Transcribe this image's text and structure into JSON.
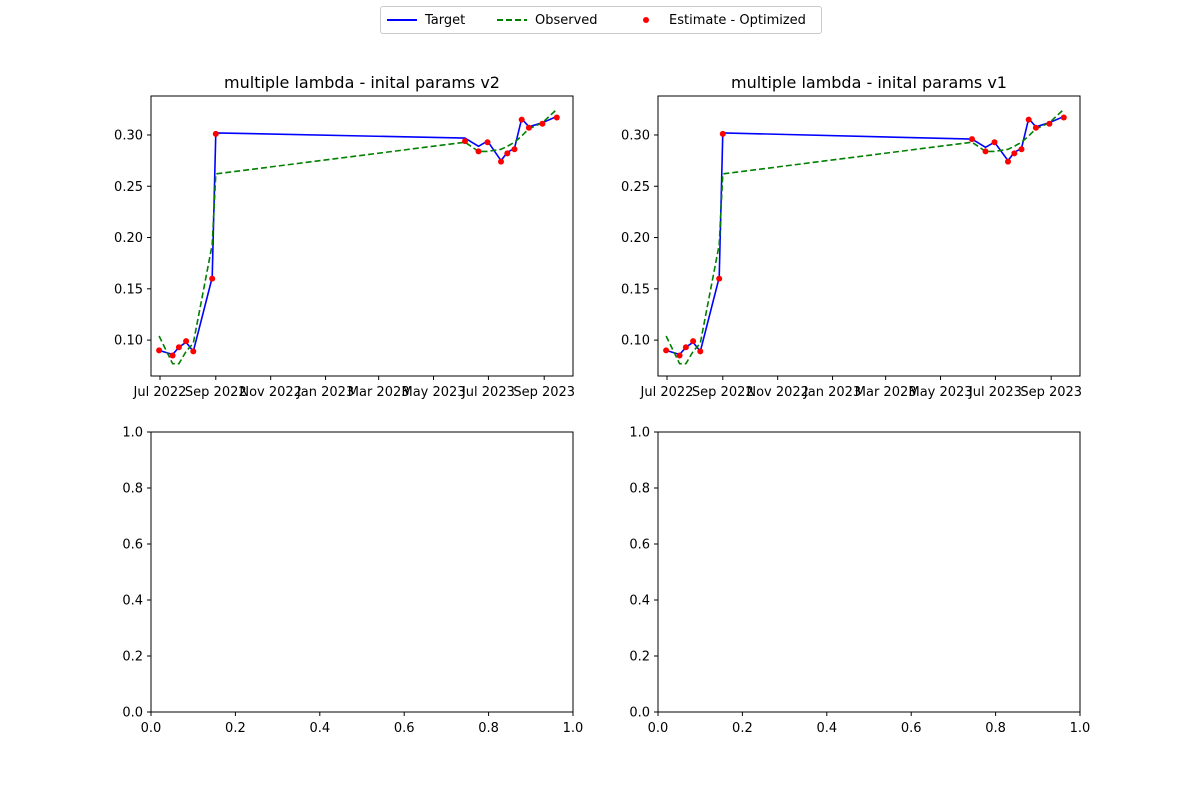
{
  "legend": {
    "target_label": "Target",
    "observed_label": "Observed",
    "estimate_label": "Estimate - Optimized"
  },
  "colors": {
    "target": "#0000ff",
    "observed": "#008000",
    "estimate": "#ff0000"
  },
  "chart_data": [
    {
      "type": "line",
      "title": "multiple lambda - inital params v2",
      "xlabel": "",
      "ylabel": "",
      "x_axis_type": "date",
      "xlim": [
        "2022-06-21",
        "2023-10-03"
      ],
      "ylim": [
        0.065,
        0.338
      ],
      "xticks": [
        "2022-07-01",
        "2022-09-01",
        "2022-11-01",
        "2023-01-01",
        "2023-03-01",
        "2023-05-01",
        "2023-07-01",
        "2023-09-01"
      ],
      "xtick_labels": [
        "Jul 2022",
        "Sep 2022",
        "Nov 2022",
        "Jan 2023",
        "Mar 2023",
        "May 2023",
        "Jul 2023",
        "Sep 2023"
      ],
      "yticks": [
        0.1,
        0.15,
        0.2,
        0.25,
        0.3
      ],
      "ytick_labels": [
        "0.10",
        "0.15",
        "0.20",
        "0.25",
        "0.30"
      ],
      "grid": false,
      "series": [
        {
          "name": "Target",
          "style": "solid",
          "x": [
            "2022-06-30",
            "2022-07-15",
            "2022-07-22",
            "2022-07-30",
            "2022-08-07",
            "2022-08-28",
            "2022-09-01",
            "2023-06-05",
            "2023-06-20",
            "2023-06-30",
            "2023-07-15",
            "2023-07-22",
            "2023-07-30",
            "2023-08-07",
            "2023-08-15",
            "2023-08-30",
            "2023-09-15"
          ],
          "y": [
            0.09,
            0.086,
            0.093,
            0.098,
            0.089,
            0.161,
            0.302,
            0.297,
            0.289,
            0.294,
            0.275,
            0.283,
            0.287,
            0.316,
            0.308,
            0.312,
            0.318
          ]
        },
        {
          "name": "Observed",
          "style": "dashed",
          "x": [
            "2022-06-30",
            "2022-07-15",
            "2022-07-22",
            "2022-07-30",
            "2022-08-07",
            "2022-08-28",
            "2022-09-01",
            "2023-06-05",
            "2023-06-20",
            "2023-06-30",
            "2023-07-15",
            "2023-07-22",
            "2023-07-30",
            "2023-08-07",
            "2023-08-15",
            "2023-08-30",
            "2023-09-15"
          ],
          "y": [
            0.104,
            0.077,
            0.077,
            0.089,
            0.097,
            0.193,
            0.262,
            0.293,
            0.284,
            0.284,
            0.286,
            0.289,
            0.293,
            0.299,
            0.306,
            0.312,
            0.325
          ]
        },
        {
          "name": "Estimate - Optimized",
          "style": "points",
          "x": [
            "2022-06-30",
            "2022-07-15",
            "2022-07-22",
            "2022-07-30",
            "2022-08-07",
            "2022-08-28",
            "2022-09-01",
            "2023-06-05",
            "2023-06-20",
            "2023-06-30",
            "2023-07-15",
            "2023-07-22",
            "2023-07-30",
            "2023-08-07",
            "2023-08-15",
            "2023-08-30",
            "2023-09-15"
          ],
          "y": [
            0.09,
            0.085,
            0.093,
            0.099,
            0.089,
            0.16,
            0.301,
            0.294,
            0.284,
            0.293,
            0.274,
            0.282,
            0.286,
            0.315,
            0.307,
            0.311,
            0.317
          ]
        }
      ]
    },
    {
      "type": "line",
      "title": "multiple lambda - inital params v1",
      "xlabel": "",
      "ylabel": "",
      "x_axis_type": "date",
      "xlim": [
        "2022-06-21",
        "2023-10-03"
      ],
      "ylim": [
        0.065,
        0.338
      ],
      "xticks": [
        "2022-07-01",
        "2022-09-01",
        "2022-11-01",
        "2023-01-01",
        "2023-03-01",
        "2023-05-01",
        "2023-07-01",
        "2023-09-01"
      ],
      "xtick_labels": [
        "Jul 2022",
        "Sep 2022",
        "Nov 2022",
        "Jan 2023",
        "Mar 2023",
        "May 2023",
        "Jul 2023",
        "Sep 2023"
      ],
      "yticks": [
        0.1,
        0.15,
        0.2,
        0.25,
        0.3
      ],
      "ytick_labels": [
        "0.10",
        "0.15",
        "0.20",
        "0.25",
        "0.30"
      ],
      "grid": false,
      "series": [
        {
          "name": "Target",
          "style": "solid",
          "x": [
            "2022-06-30",
            "2022-07-15",
            "2022-07-22",
            "2022-07-30",
            "2022-08-07",
            "2022-08-28",
            "2022-09-01",
            "2023-06-05",
            "2023-06-20",
            "2023-06-30",
            "2023-07-15",
            "2023-07-22",
            "2023-07-30",
            "2023-08-07",
            "2023-08-15",
            "2023-08-30",
            "2023-09-15"
          ],
          "y": [
            0.09,
            0.086,
            0.093,
            0.098,
            0.089,
            0.161,
            0.302,
            0.296,
            0.288,
            0.293,
            0.275,
            0.283,
            0.287,
            0.316,
            0.308,
            0.312,
            0.318
          ]
        },
        {
          "name": "Observed",
          "style": "dashed",
          "x": [
            "2022-06-30",
            "2022-07-15",
            "2022-07-22",
            "2022-07-30",
            "2022-08-07",
            "2022-08-28",
            "2022-09-01",
            "2023-06-05",
            "2023-06-20",
            "2023-06-30",
            "2023-07-15",
            "2023-07-22",
            "2023-07-30",
            "2023-08-07",
            "2023-08-15",
            "2023-08-30",
            "2023-09-15"
          ],
          "y": [
            0.104,
            0.077,
            0.077,
            0.089,
            0.097,
            0.193,
            0.262,
            0.293,
            0.284,
            0.284,
            0.286,
            0.289,
            0.293,
            0.299,
            0.306,
            0.312,
            0.325
          ]
        },
        {
          "name": "Estimate - Optimized",
          "style": "points",
          "x": [
            "2022-06-30",
            "2022-07-15",
            "2022-07-22",
            "2022-07-30",
            "2022-08-07",
            "2022-08-28",
            "2022-09-01",
            "2023-06-05",
            "2023-06-20",
            "2023-06-30",
            "2023-07-15",
            "2023-07-22",
            "2023-07-30",
            "2023-08-07",
            "2023-08-15",
            "2023-08-30",
            "2023-09-15"
          ],
          "y": [
            0.09,
            0.085,
            0.093,
            0.099,
            0.089,
            0.16,
            0.301,
            0.296,
            0.284,
            0.293,
            0.274,
            0.282,
            0.286,
            0.315,
            0.307,
            0.311,
            0.317
          ]
        }
      ]
    },
    {
      "type": "line",
      "title": "",
      "xlabel": "",
      "ylabel": "",
      "xlim": [
        0,
        1
      ],
      "ylim": [
        0,
        1
      ],
      "xticks": [
        0,
        0.2,
        0.4,
        0.6,
        0.8,
        1
      ],
      "xtick_labels": [
        "0.0",
        "0.2",
        "0.4",
        "0.6",
        "0.8",
        "1.0"
      ],
      "yticks": [
        0,
        0.2,
        0.4,
        0.6,
        0.8,
        1
      ],
      "ytick_labels": [
        "0.0",
        "0.2",
        "0.4",
        "0.6",
        "0.8",
        "1.0"
      ],
      "grid": false,
      "series": []
    },
    {
      "type": "line",
      "title": "",
      "xlabel": "",
      "ylabel": "",
      "xlim": [
        0,
        1
      ],
      "ylim": [
        0,
        1
      ],
      "xticks": [
        0,
        0.2,
        0.4,
        0.6,
        0.8,
        1
      ],
      "xtick_labels": [
        "0.0",
        "0.2",
        "0.4",
        "0.6",
        "0.8",
        "1.0"
      ],
      "yticks": [
        0,
        0.2,
        0.4,
        0.6,
        0.8,
        1
      ],
      "ytick_labels": [
        "0.0",
        "0.2",
        "0.4",
        "0.6",
        "0.8",
        "1.0"
      ],
      "grid": false,
      "series": []
    }
  ]
}
